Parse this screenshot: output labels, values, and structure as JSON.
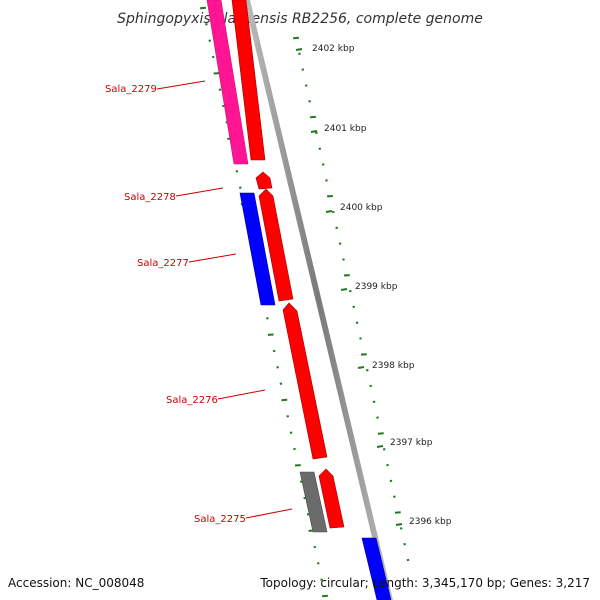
{
  "title": "Sphingopyxis alaskensis RB2256, complete genome",
  "footer": {
    "accession": "Accession: NC_008048",
    "topology": "Topology: circular; Length: 3,345,170 bp; Genes: 3,217"
  },
  "colors": {
    "forward_cds": "#ff0000",
    "reverse_cds": "#0000ff",
    "rna": "#ff1493",
    "other": "#6b6b6b",
    "label": "#cc0000",
    "backbone": "#8c8c8c",
    "ticks": "#1f7a1f"
  },
  "scale_labels": [
    "2402 kbp",
    "2401 kbp",
    "2400 kbp",
    "2399 kbp",
    "2398 kbp",
    "2397 kbp",
    "2396 kbp"
  ],
  "gene_labels": [
    "Sala_2279",
    "Sala_2278",
    "Sala_2277",
    "Sala_2276",
    "Sala_2275"
  ]
}
